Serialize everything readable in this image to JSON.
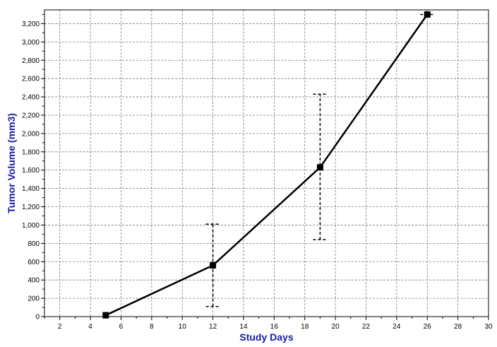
{
  "chart_data": {
    "type": "line",
    "xlabel": "Study Days",
    "ylabel": "Tumor Volume (mm3)",
    "xlim": [
      1,
      30
    ],
    "ylim": [
      0,
      3350
    ],
    "x_ticks": [
      2,
      4,
      6,
      8,
      10,
      12,
      14,
      16,
      18,
      20,
      22,
      24,
      26,
      28,
      30
    ],
    "x_tick_labels": [
      "2",
      "4",
      "6",
      "8",
      "10",
      "12",
      "14",
      "16",
      "18",
      "20",
      "22",
      "24",
      "26",
      "28",
      "30"
    ],
    "y_ticks": [
      0,
      200,
      400,
      600,
      800,
      1000,
      1200,
      1400,
      1600,
      1800,
      2000,
      2200,
      2400,
      2600,
      2800,
      3000,
      3200
    ],
    "y_tick_labels": [
      "0",
      "200",
      "400",
      "600",
      "800",
      "1,000",
      "1,200",
      "1,400",
      "1,600",
      "1,800",
      "2,000",
      "2,200",
      "2,400",
      "2,600",
      "2,800",
      "3,000",
      "3,200"
    ],
    "grid": true,
    "series": [
      {
        "x": [
          5,
          12,
          19,
          26
        ],
        "y": [
          15,
          560,
          1630,
          3300
        ],
        "err_low": [
          0,
          110,
          840,
          3300
        ],
        "err_high": [
          0,
          1010,
          2430,
          3300
        ],
        "color": "#000000"
      }
    ],
    "axis_title_color": "#1a1aa8"
  }
}
